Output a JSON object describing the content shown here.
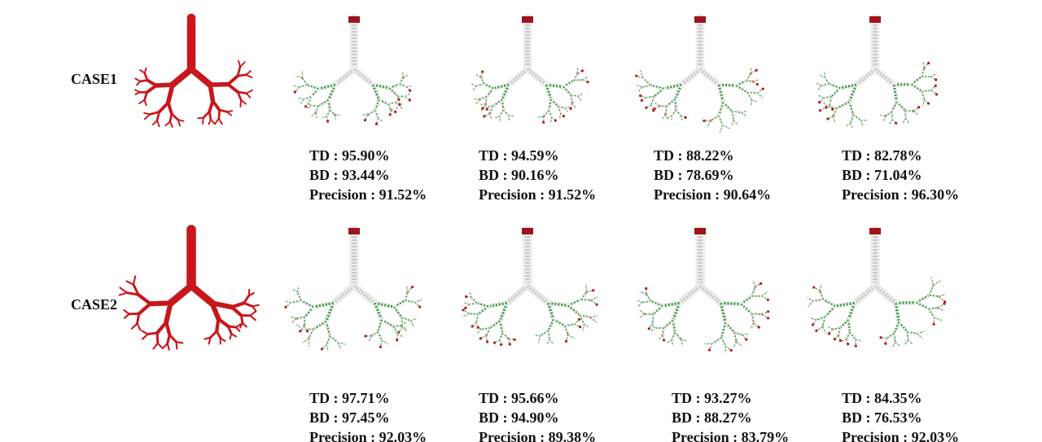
{
  "rows": [
    {
      "label": "CASE1",
      "results": [
        [
          "TD : 95.90%",
          "BD : 93.44%",
          "Precision : 91.52%"
        ],
        [
          "TD : 94.59%",
          "BD : 90.16%",
          "Precision : 91.52%"
        ],
        [
          "TD : 88.22%",
          "BD : 78.69%",
          "Precision : 90.64%"
        ],
        [
          "TD : 82.78%",
          "BD : 71.04%",
          "Precision : 96.30%"
        ]
      ]
    },
    {
      "label": "CASE2",
      "results": [
        [
          "TD : 97.71%",
          "BD : 97.45%",
          "Precision : 92.03%"
        ],
        [
          "TD : 95.66%",
          "BD : 94.90%",
          "Precision : 89.38%"
        ],
        [
          "TD : 93.27%",
          "BD : 88.27%",
          "Precision : 83.79%"
        ],
        [
          "TD : 84.35%",
          "BD : 76.53%",
          "Precision : 92.03%"
        ]
      ]
    }
  ]
}
